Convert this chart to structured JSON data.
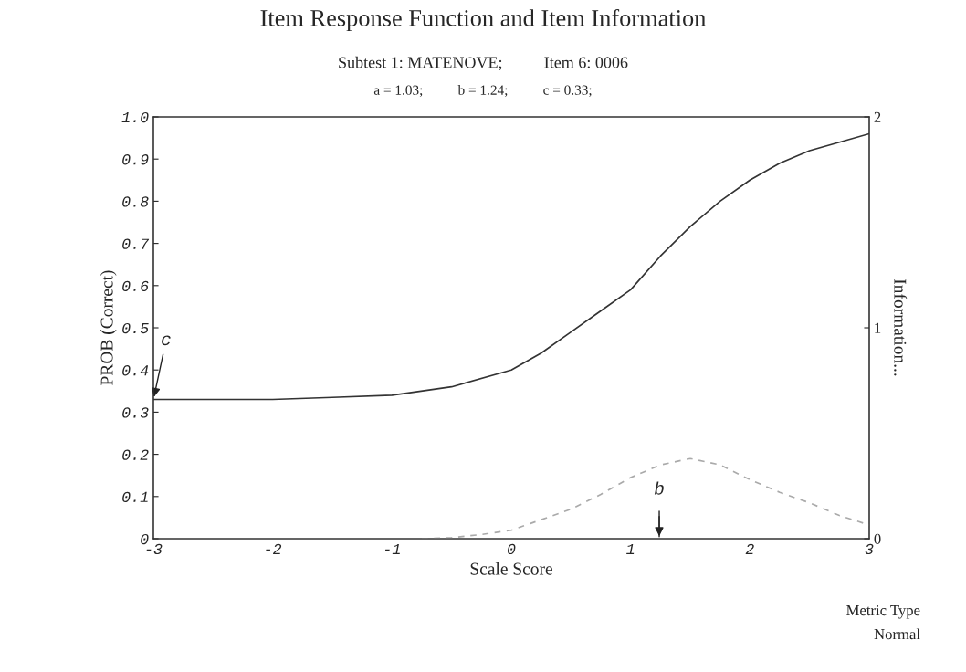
{
  "chart_data": {
    "type": "line",
    "title": "Item Response Function and Item Information",
    "subtitle": "Subtest 1: MATENOVE;          Item 6: 0006",
    "xlabel": "Scale Score",
    "ylabel": "PROB (Correct)",
    "y2label": "Information...",
    "series": [
      {
        "color": "#333333",
        "line_style": "solid",
        "x": [
          -3,
          -2.5,
          -2,
          -1.5,
          -1,
          -0.5,
          0,
          0.25,
          0.5,
          0.75,
          1,
          1.25,
          1.5,
          1.75,
          2,
          2.25,
          2.5,
          2.75,
          3
        ],
        "values": [
          0.33,
          0.33,
          0.33,
          0.335,
          0.34,
          0.36,
          0.4,
          0.44,
          0.49,
          0.54,
          0.59,
          0.67,
          0.74,
          0.8,
          0.85,
          0.89,
          0.92,
          0.94,
          0.96
        ]
      },
      {
        "color": "#aaaaaa",
        "line_style": "dashed",
        "axis": "y2",
        "x": [
          -0.75,
          -0.5,
          -0.25,
          0,
          0.25,
          0.5,
          0.75,
          1,
          1.25,
          1.5,
          1.75,
          2,
          2.25,
          2.5,
          2.75,
          3
        ],
        "values": [
          0,
          0.005,
          0.02,
          0.04,
          0.09,
          0.14,
          0.21,
          0.29,
          0.35,
          0.38,
          0.35,
          0.28,
          0.22,
          0.17,
          0.11,
          0.065
        ]
      }
    ],
    "xlim": [
      -3,
      3
    ],
    "xticks": [
      -3,
      -2,
      -1,
      0,
      1,
      2,
      3
    ],
    "ylim": [
      0,
      1
    ],
    "yticks": [
      0,
      0.1,
      0.2,
      0.3,
      0.4,
      0.5,
      0.6,
      0.7,
      0.8,
      0.9,
      {
        "value": 1,
        "label": "1.0"
      }
    ],
    "y2lim": [
      0,
      2
    ],
    "y2ticks": [
      0,
      1,
      2
    ],
    "ref_lines": [
      {
        "axis": "x",
        "value": 1.24,
        "label": "b"
      }
    ],
    "grid": false,
    "legend": false,
    "marker": "none",
    "annotations": [
      "a = 1.03;          b = 1.24;          c = 0.33;",
      {
        "text": "c",
        "x": -3,
        "y": 0.33
      },
      "Metric Type",
      "Normal"
    ]
  }
}
